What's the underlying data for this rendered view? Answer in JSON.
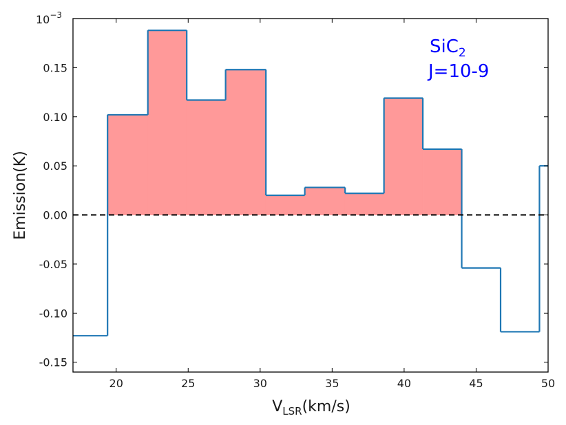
{
  "chart_data": {
    "type": "area",
    "style": "step-histogram",
    "xlabel": {
      "main": "V",
      "sub": "LSR",
      "unit": "(km/s)"
    },
    "ylabel": "Emission(K)",
    "y_offset_text": {
      "base": "10",
      "exp": "−3"
    },
    "xlim": [
      17,
      50
    ],
    "ylim": [
      -0.16,
      0.2
    ],
    "xticks": [
      20,
      25,
      30,
      35,
      40,
      45,
      50
    ],
    "xtick_labels": [
      "20",
      "25",
      "30",
      "35",
      "40",
      "45",
      "50"
    ],
    "yticks": [
      -0.15,
      -0.1,
      -0.05,
      0.0,
      0.05,
      0.1,
      0.15
    ],
    "ytick_labels": [
      "-0.15",
      "-0.10",
      "-0.05",
      "0.00",
      "0.05",
      "0.10",
      "0.15"
    ],
    "grid": false,
    "annotation": {
      "main": "SiC",
      "sub": "2",
      "line2": "J=10-9"
    },
    "colors": {
      "line": "#1f77b4",
      "fill": "#ff9999",
      "zero_line": "#000000",
      "annotation": "#0000ff"
    },
    "series": [
      {
        "bin_edges": [
          17,
          19.4,
          22.2,
          24.9,
          27.6,
          30.4,
          33.1,
          35.9,
          38.6,
          41.3,
          44.0,
          46.7,
          49.4,
          50
        ],
        "values": [
          -0.123,
          0.102,
          0.188,
          0.117,
          0.148,
          0.02,
          0.028,
          0.022,
          0.119,
          0.067,
          -0.054,
          -0.119,
          0.05
        ]
      }
    ],
    "fill_range": [
      19.4,
      44.0
    ],
    "reference_line": {
      "y": 0.0,
      "style": "dashed"
    }
  }
}
